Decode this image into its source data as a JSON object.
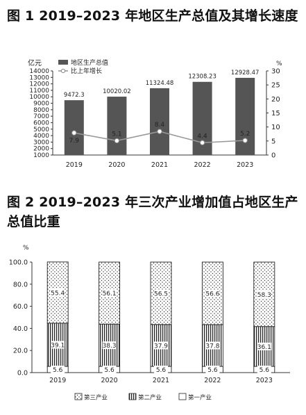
{
  "charts": [
    {
      "title": "图 1 2019–2023 年地区生产总值及其增长速度",
      "chart_data": {
        "type": "bar",
        "categories": [
          "2019",
          "2020",
          "2021",
          "2022",
          "2023"
        ],
        "series": [
          {
            "name": "地区生产总值",
            "type": "bar",
            "axis": "left",
            "values": [
              9472.3,
              10020.02,
              11324.48,
              12308.23,
              12928.47
            ],
            "color": "#555555"
          },
          {
            "name": "比上年增长",
            "type": "line",
            "axis": "right",
            "values": [
              7.9,
              5.1,
              8.4,
              4.4,
              5.2
            ],
            "color": "#999999"
          }
        ],
        "y_left": {
          "unit": "亿元",
          "ylim": [
            1000,
            14000
          ],
          "ticks": [
            "1000",
            "2000",
            "3000",
            "4000",
            "5000",
            "6000",
            "7000",
            "8000",
            "9000",
            "10000",
            "11000",
            "12000",
            "13000",
            "14000"
          ]
        },
        "y_right": {
          "unit": "%",
          "ylim": [
            0,
            30
          ],
          "ticks": [
            "0",
            "5",
            "10",
            "15",
            "20",
            "25",
            "30"
          ]
        },
        "bar_labels": [
          "9472.3",
          "10020.02",
          "11324.48",
          "12308.23",
          "12928.47"
        ],
        "line_labels": [
          "7.9",
          "5.1",
          "8.4",
          "4.4",
          "5.2"
        ],
        "legend_position": "top-left",
        "grid": false
      }
    },
    {
      "title": "图 2 2019–2023 年三次产业增加值占地区生产总值比重",
      "chart_data": {
        "type": "bar",
        "stacked": true,
        "categories": [
          "2019",
          "2020",
          "2021",
          "2022",
          "2023"
        ],
        "series": [
          {
            "name": "第一产业",
            "values": [
              5.6,
              5.6,
              5.6,
              5.6,
              5.6
            ],
            "pattern": "blank"
          },
          {
            "name": "第二产业",
            "values": [
              39.1,
              38.3,
              37.9,
              37.8,
              36.1
            ],
            "pattern": "vertical-lines"
          },
          {
            "name": "第三产业",
            "values": [
              55.4,
              56.1,
              56.5,
              56.6,
              58.3
            ],
            "pattern": "dots"
          }
        ],
        "y": {
          "unit": "%",
          "ylim": [
            0,
            100
          ],
          "ticks": [
            "0.0",
            "20.0",
            "40.0",
            "60.0",
            "80.0",
            "100.0"
          ]
        },
        "legend_order": [
          "第三产业",
          "第二产业",
          "第一产业"
        ],
        "legend_position": "bottom",
        "grid": false
      }
    }
  ]
}
